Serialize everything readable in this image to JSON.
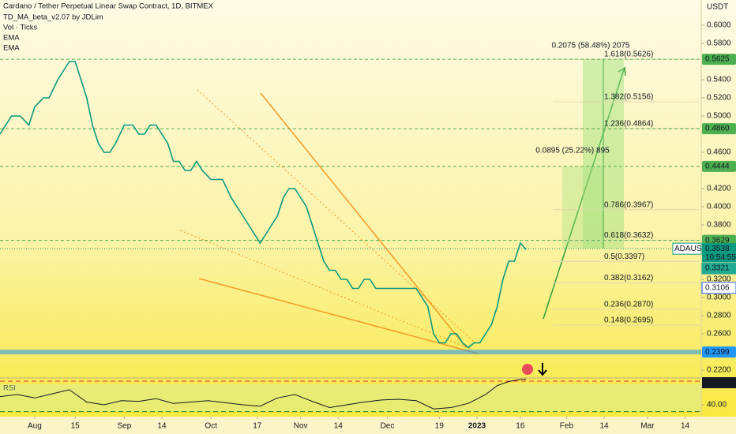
{
  "chart_data": [
    {
      "type": "line",
      "title": "Cardano / Tether Perpetual Linear Swap Contract, 1D, BITMEX",
      "indicators": [
        "TD_MA_beta_v2.07 by JDLim",
        "Vol · Ticks",
        "EMA",
        "EMA"
      ],
      "y_axis_unit": "USDT",
      "x": [
        -12,
        -8,
        -5,
        -2,
        0,
        3,
        5,
        8,
        10,
        12,
        14,
        16,
        18,
        20,
        22,
        24,
        26,
        28,
        31,
        34,
        36,
        38,
        40,
        42,
        44,
        46,
        48,
        50,
        52,
        54,
        56,
        58,
        61,
        63,
        65,
        68,
        70,
        72,
        74,
        76,
        78,
        80,
        82,
        84,
        86,
        88,
        90,
        92,
        94,
        96,
        98,
        100,
        102,
        104,
        106,
        108,
        110,
        112,
        114,
        116,
        118,
        120,
        122,
        124,
        126,
        128,
        130,
        132,
        134,
        136,
        138,
        140,
        142,
        144,
        146,
        148,
        150,
        152,
        154,
        156,
        158,
        160,
        162,
        164,
        166,
        168,
        170
      ],
      "series": [
        {
          "name": "ADAUSDT",
          "color": "#089981",
          "values": [
            0.48,
            0.5,
            0.5,
            0.49,
            0.51,
            0.52,
            0.52,
            0.54,
            0.55,
            0.56,
            0.56,
            0.54,
            0.52,
            0.49,
            0.47,
            0.46,
            0.46,
            0.47,
            0.49,
            0.49,
            0.48,
            0.48,
            0.49,
            0.49,
            0.48,
            0.47,
            0.45,
            0.45,
            0.44,
            0.44,
            0.45,
            0.44,
            0.43,
            0.43,
            0.43,
            0.41,
            0.4,
            0.39,
            0.38,
            0.37,
            0.36,
            0.37,
            0.38,
            0.39,
            0.41,
            0.42,
            0.42,
            0.41,
            0.4,
            0.38,
            0.36,
            0.34,
            0.33,
            0.33,
            0.32,
            0.32,
            0.31,
            0.31,
            0.32,
            0.32,
            0.31,
            0.31,
            0.31,
            0.31,
            0.31,
            0.31,
            0.31,
            0.31,
            0.3,
            0.29,
            0.26,
            0.25,
            0.25,
            0.26,
            0.26,
            0.25,
            0.245,
            0.25,
            0.25,
            0.26,
            0.27,
            0.29,
            0.32,
            0.34,
            0.34,
            0.36,
            0.353
          ]
        }
      ],
      "xlim": [
        -12,
        230.6
      ],
      "xticks": [
        {
          "value": 0,
          "label": "Aug"
        },
        {
          "value": 14,
          "label": "15"
        },
        {
          "value": 31,
          "label": "Sep"
        },
        {
          "value": 44,
          "label": "14"
        },
        {
          "value": 61,
          "label": "Oct"
        },
        {
          "value": 77,
          "label": "17"
        },
        {
          "value": 92,
          "label": "Nov"
        },
        {
          "value": 105,
          "label": "14"
        },
        {
          "value": 122,
          "label": "Dec"
        },
        {
          "value": 140,
          "label": "19"
        },
        {
          "value": 153,
          "label": "2023"
        },
        {
          "value": 168,
          "label": "16"
        },
        {
          "value": 184,
          "label": "Feb"
        },
        {
          "value": 197,
          "label": "14"
        },
        {
          "value": 212,
          "label": "Mar"
        },
        {
          "value": 225,
          "label": "14"
        }
      ],
      "ylim": [
        0.2122,
        0.6278
      ],
      "yticks": [
        {
          "value": 0.22,
          "label": "0.2200"
        },
        {
          "value": 0.26,
          "label": "0.2600"
        },
        {
          "value": 0.28,
          "label": "0.2800"
        },
        {
          "value": 0.3,
          "label": "0.3000"
        },
        {
          "value": 0.32,
          "label": "0.3200"
        },
        {
          "value": 0.38,
          "label": "0.3800"
        },
        {
          "value": 0.4,
          "label": "0.4000"
        },
        {
          "value": 0.42,
          "label": "0.4200"
        },
        {
          "value": 0.46,
          "label": "0.4600"
        },
        {
          "value": 0.5,
          "label": "0.5000"
        },
        {
          "value": 0.52,
          "label": "0.5200"
        },
        {
          "value": 0.54,
          "label": "0.5400"
        },
        {
          "value": 0.58,
          "label": "0.5800"
        },
        {
          "value": 0.6,
          "label": "0.6000"
        }
      ],
      "price_levels": [
        {
          "value": 0.5625,
          "label": "0.5625"
        },
        {
          "value": 0.486,
          "label": "0.4860"
        },
        {
          "value": 0.4444,
          "label": "0.4444"
        },
        {
          "value": 0.3629,
          "label": "0.3629"
        }
      ],
      "last_price": {
        "value": 0.3538,
        "label": "0.3538",
        "countdown": "10:54:55"
      },
      "ema_levels": [
        {
          "value": 0.3321,
          "label": "0.3321",
          "color": "#22ab94"
        },
        {
          "value": 0.3106,
          "label": "0.3106",
          "color": "#2962ff"
        }
      ],
      "support": {
        "value": 0.2399,
        "label": "0.2399",
        "color": "#2196f3"
      },
      "fib_levels": [
        {
          "value": 0.5626,
          "label": "1.618(0.5626)"
        },
        {
          "value": 0.5156,
          "label": "1.382(0.5156)"
        },
        {
          "value": 0.4864,
          "label": "1.236(0.4864)"
        },
        {
          "value": 0.3967,
          "label": "0.786(0.3967)"
        },
        {
          "value": 0.3632,
          "label": "0.618(0.3632)"
        },
        {
          "value": 0.3397,
          "label": "0.5(0.3397)"
        },
        {
          "value": 0.3162,
          "label": "0.382(0.3162)"
        },
        {
          "value": 0.287,
          "label": "0.236(0.2870)"
        },
        {
          "value": 0.2695,
          "label": "0.148(0.2695)"
        }
      ],
      "measures": [
        "0.2075 (58.48%) 2075",
        "0.0895 (25.22%) 895"
      ]
    },
    {
      "type": "line",
      "title": "RSI",
      "x": [
        -12,
        -6,
        0,
        6,
        12,
        18,
        24,
        30,
        36,
        42,
        48,
        54,
        60,
        66,
        72,
        78,
        84,
        90,
        96,
        102,
        108,
        114,
        120,
        126,
        132,
        138,
        144,
        150,
        156,
        160,
        164,
        168,
        170
      ],
      "series": [
        {
          "name": "RSI",
          "color": "#131722",
          "values": [
            52,
            55,
            50,
            56,
            62,
            44,
            40,
            46,
            45,
            49,
            42,
            44,
            46,
            43,
            40,
            38,
            50,
            55,
            45,
            36,
            40,
            44,
            47,
            48,
            46,
            34,
            36,
            42,
            55,
            68,
            74,
            77,
            77.43
          ]
        }
      ],
      "ylim": [
        25,
        78
      ],
      "yticks": [
        {
          "value": 40,
          "label": "40.00"
        }
      ],
      "last_value": {
        "value": 77.43,
        "label": "77.43"
      }
    }
  ]
}
